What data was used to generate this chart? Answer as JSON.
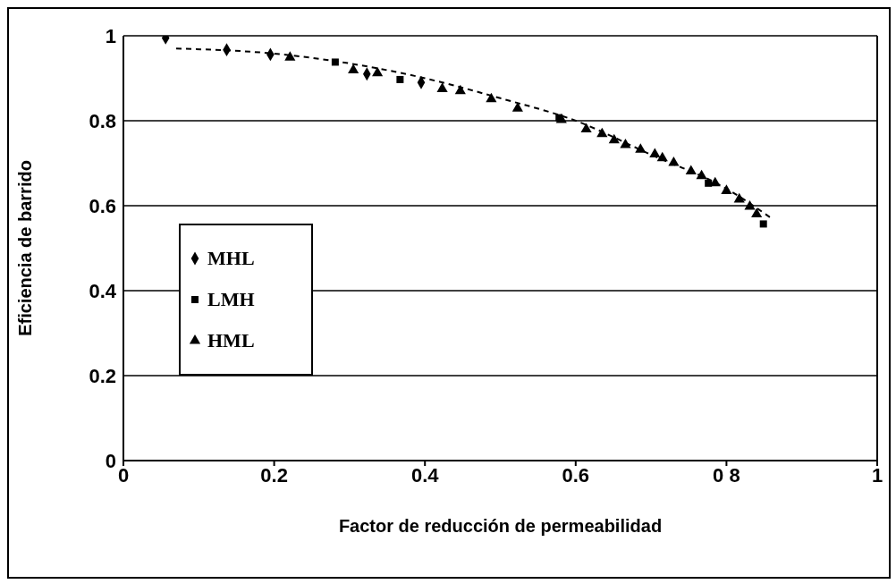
{
  "chart_data": {
    "type": "scatter",
    "xlabel": "Factor de reducción de permeabilidad",
    "ylabel": "Eficiencia de barrido",
    "xlim": [
      0,
      1
    ],
    "ylim": [
      0,
      1
    ],
    "xticks": [
      0,
      0.2,
      0.4,
      0.6,
      {
        "value": 0.8,
        "label": "0 8"
      },
      1
    ],
    "yticks": [
      0,
      0.2,
      0.4,
      0.6,
      0.8,
      1
    ],
    "grid": "y",
    "legend": "left",
    "series": [
      {
        "name": "MHL",
        "type": "scatter",
        "marker": "diamond",
        "color": "#000000",
        "x": [
          0.056,
          0.137,
          0.195,
          0.323,
          0.395
        ],
        "values": [
          0.995,
          0.967,
          0.956,
          0.91,
          0.89
        ]
      },
      {
        "name": "LMH",
        "type": "scatter",
        "marker": "square",
        "color": "#000000",
        "x": [
          0.281,
          0.367,
          0.578,
          0.776,
          0.849
        ],
        "values": [
          0.938,
          0.897,
          0.807,
          0.653,
          0.557
        ]
      },
      {
        "name": "HML",
        "type": "scatter",
        "marker": "triangle",
        "color": "#000000",
        "x": [
          0.221,
          0.305,
          0.337,
          0.423,
          0.447,
          0.488,
          0.523,
          0.581,
          0.614,
          0.635,
          0.651,
          0.666,
          0.686,
          0.705,
          0.715,
          0.73,
          0.753,
          0.767,
          0.785,
          0.8,
          0.817,
          0.831,
          0.84
        ],
        "values": [
          0.949,
          0.919,
          0.912,
          0.875,
          0.87,
          0.851,
          0.829,
          0.802,
          0.78,
          0.769,
          0.754,
          0.743,
          0.732,
          0.721,
          0.712,
          0.701,
          0.681,
          0.67,
          0.653,
          0.635,
          0.615,
          0.598,
          0.58
        ]
      },
      {
        "type": "line",
        "line_style": "dashed",
        "marker": "none",
        "color": "#000000",
        "x": [
          0.07,
          0.2,
          0.3,
          0.4,
          0.5,
          0.6,
          0.7,
          0.8,
          0.86
        ],
        "values": [
          0.97,
          0.958,
          0.935,
          0.9,
          0.853,
          0.8,
          0.72,
          0.64,
          0.57
        ]
      }
    ]
  }
}
